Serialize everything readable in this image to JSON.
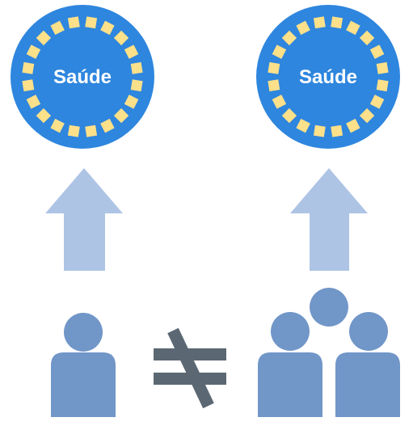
{
  "badges": [
    {
      "label": "Saúde"
    },
    {
      "label": "Saúde"
    }
  ],
  "relation_symbol": "not-equal-icon",
  "left_group": {
    "people_count": 1
  },
  "right_group": {
    "people_count": 3
  },
  "colors": {
    "badge_fill": "#2e86de",
    "badge_dots": "#fce08a",
    "badge_text": "#ffffff",
    "arrow": "#aec4e5",
    "person": "#7196c8",
    "not_equal": "#5b6873"
  }
}
